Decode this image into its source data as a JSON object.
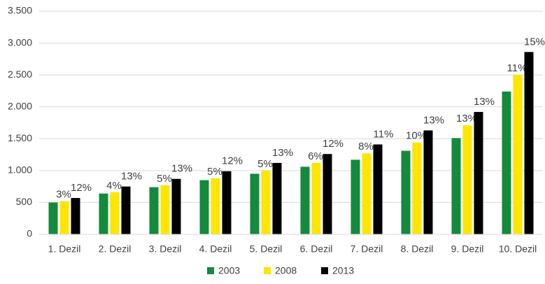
{
  "chart_data": {
    "type": "bar",
    "categories": [
      "1. Dezil",
      "2. Dezil",
      "3. Dezil",
      "4. Dezil",
      "5. Dezil",
      "6. Dezil",
      "7. Dezil",
      "8. Dezil",
      "9. Dezil",
      "10. Dezil"
    ],
    "series": [
      {
        "name": "2003",
        "color": "#138a3c",
        "values": [
          500,
          640,
          740,
          850,
          950,
          1060,
          1170,
          1310,
          1510,
          2240
        ]
      },
      {
        "name": "2008",
        "color": "#ffe500",
        "values": [
          520,
          660,
          770,
          880,
          1000,
          1120,
          1270,
          1440,
          1710,
          2500
        ],
        "bar_labels": [
          "3%",
          "4%",
          "5%",
          "5%",
          "5%",
          "6%",
          "8%",
          "10%",
          "13%",
          "11%"
        ]
      },
      {
        "name": "2013",
        "color": "#000000",
        "values": [
          570,
          750,
          870,
          990,
          1120,
          1260,
          1410,
          1630,
          1920,
          2860
        ],
        "bar_labels": [
          "12%",
          "13%",
          "13%",
          "12%",
          "13%",
          "12%",
          "11%",
          "13%",
          "13%",
          "15%"
        ]
      }
    ],
    "ylim": [
      0,
      3500
    ],
    "yticks": [
      0,
      500,
      {
        "value": 1000,
        "label": "1.000"
      },
      {
        "value": 1500,
        "label": "1.500"
      },
      {
        "value": 2000,
        "label": "2.000"
      },
      {
        "value": 2500,
        "label": "2.500"
      },
      {
        "value": 3000,
        "label": "3.000"
      },
      {
        "value": 3500,
        "label": "3.500"
      }
    ],
    "grid": true,
    "legend": "bottom"
  }
}
